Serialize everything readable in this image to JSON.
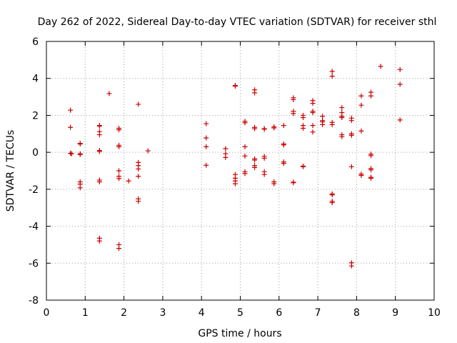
{
  "chart_data": {
    "type": "scatter",
    "title": "Day 262 of 2022, Sidereal Day-to-day VTEC variation (SDTVAR) for receiver sthl",
    "xlabel": "GPS time / hours",
    "ylabel": "SDTVAR / TECUs",
    "xlim": [
      0,
      10
    ],
    "ylim": [
      -8,
      6
    ],
    "xticks": [
      0,
      1,
      2,
      3,
      4,
      5,
      6,
      7,
      8,
      9,
      10
    ],
    "yticks": [
      -8,
      -6,
      -4,
      -2,
      0,
      2,
      4,
      6
    ],
    "grid": true,
    "marker": "+",
    "color": "#cc0000",
    "series": [
      {
        "name": "SDTVAR",
        "points": [
          [
            0.62,
            2.28
          ],
          [
            0.62,
            1.35
          ],
          [
            0.62,
            -0.05
          ],
          [
            0.65,
            -0.08
          ],
          [
            0.87,
            0.45
          ],
          [
            0.87,
            0.48
          ],
          [
            0.87,
            -0.08
          ],
          [
            0.87,
            -0.12
          ],
          [
            0.87,
            -1.6
          ],
          [
            0.87,
            -1.72
          ],
          [
            0.87,
            -1.92
          ],
          [
            1.37,
            1.45
          ],
          [
            1.37,
            1.42
          ],
          [
            1.37,
            1.12
          ],
          [
            1.37,
            0.95
          ],
          [
            1.37,
            0.1
          ],
          [
            1.37,
            0.05
          ],
          [
            1.37,
            -1.5
          ],
          [
            1.37,
            -1.6
          ],
          [
            1.37,
            -4.65
          ],
          [
            1.37,
            -4.8
          ],
          [
            1.62,
            3.18
          ],
          [
            1.87,
            1.3
          ],
          [
            1.87,
            1.22
          ],
          [
            1.87,
            0.38
          ],
          [
            1.87,
            0.3
          ],
          [
            1.87,
            -1.0
          ],
          [
            1.87,
            -1.3
          ],
          [
            1.87,
            -1.42
          ],
          [
            1.87,
            -5.0
          ],
          [
            1.87,
            -5.2
          ],
          [
            2.12,
            -1.55
          ],
          [
            2.37,
            2.6
          ],
          [
            2.37,
            -0.55
          ],
          [
            2.37,
            -0.72
          ],
          [
            2.37,
            -0.9
          ],
          [
            2.37,
            -1.3
          ],
          [
            2.37,
            -2.52
          ],
          [
            2.37,
            -2.65
          ],
          [
            2.62,
            0.08
          ],
          [
            4.12,
            1.55
          ],
          [
            4.12,
            0.78
          ],
          [
            4.12,
            0.3
          ],
          [
            4.12,
            -0.7
          ],
          [
            4.62,
            0.2
          ],
          [
            4.62,
            -0.08
          ],
          [
            4.62,
            -0.28
          ],
          [
            4.87,
            3.62
          ],
          [
            4.87,
            3.58
          ],
          [
            4.87,
            -1.2
          ],
          [
            4.87,
            -1.4
          ],
          [
            4.87,
            -1.55
          ],
          [
            4.87,
            -1.7
          ],
          [
            5.12,
            1.68
          ],
          [
            5.12,
            1.6
          ],
          [
            5.12,
            0.3
          ],
          [
            5.12,
            -0.2
          ],
          [
            5.12,
            -1.05
          ],
          [
            5.12,
            -1.15
          ],
          [
            5.37,
            3.38
          ],
          [
            5.37,
            3.22
          ],
          [
            5.37,
            1.35
          ],
          [
            5.37,
            1.28
          ],
          [
            5.37,
            -0.35
          ],
          [
            5.37,
            -0.42
          ],
          [
            5.37,
            -0.72
          ],
          [
            5.37,
            -0.82
          ],
          [
            5.62,
            1.28
          ],
          [
            5.62,
            1.25
          ],
          [
            5.62,
            -0.22
          ],
          [
            5.62,
            -0.32
          ],
          [
            5.62,
            -1.05
          ],
          [
            5.62,
            -1.2
          ],
          [
            5.87,
            1.38
          ],
          [
            5.87,
            1.32
          ],
          [
            5.87,
            -1.6
          ],
          [
            5.87,
            -1.7
          ],
          [
            6.12,
            1.45
          ],
          [
            6.12,
            0.45
          ],
          [
            6.12,
            0.4
          ],
          [
            6.12,
            -0.52
          ],
          [
            6.12,
            -0.6
          ],
          [
            6.37,
            2.95
          ],
          [
            6.37,
            2.85
          ],
          [
            6.37,
            2.22
          ],
          [
            6.37,
            2.1
          ],
          [
            6.37,
            -1.62
          ],
          [
            6.37,
            -1.65
          ],
          [
            6.62,
            2.0
          ],
          [
            6.62,
            1.88
          ],
          [
            6.62,
            1.45
          ],
          [
            6.62,
            1.3
          ],
          [
            6.62,
            -0.75
          ],
          [
            6.62,
            -0.78
          ],
          [
            6.87,
            2.8
          ],
          [
            6.87,
            2.65
          ],
          [
            6.87,
            2.22
          ],
          [
            6.87,
            2.15
          ],
          [
            6.87,
            1.45
          ],
          [
            6.87,
            1.1
          ],
          [
            7.12,
            1.95
          ],
          [
            7.12,
            1.72
          ],
          [
            7.12,
            1.65
          ],
          [
            7.12,
            1.5
          ],
          [
            7.37,
            4.38
          ],
          [
            7.37,
            4.12
          ],
          [
            7.37,
            1.62
          ],
          [
            7.37,
            1.5
          ],
          [
            7.37,
            -2.25
          ],
          [
            7.37,
            -2.3
          ],
          [
            7.37,
            -2.65
          ],
          [
            7.37,
            -2.72
          ],
          [
            7.62,
            2.42
          ],
          [
            7.62,
            2.15
          ],
          [
            7.62,
            1.95
          ],
          [
            7.62,
            1.88
          ],
          [
            7.62,
            0.95
          ],
          [
            7.62,
            0.85
          ],
          [
            7.87,
            1.85
          ],
          [
            7.87,
            1.72
          ],
          [
            7.87,
            1.0
          ],
          [
            7.87,
            0.92
          ],
          [
            7.87,
            -0.78
          ],
          [
            7.87,
            -5.98
          ],
          [
            7.87,
            -6.15
          ],
          [
            8.12,
            3.05
          ],
          [
            8.12,
            2.55
          ],
          [
            8.12,
            1.15
          ],
          [
            8.12,
            -1.18
          ],
          [
            8.12,
            -1.25
          ],
          [
            8.37,
            3.25
          ],
          [
            8.37,
            3.05
          ],
          [
            8.37,
            -0.1
          ],
          [
            8.37,
            -0.18
          ],
          [
            8.37,
            -0.88
          ],
          [
            8.37,
            -0.95
          ],
          [
            8.37,
            -1.35
          ],
          [
            8.37,
            -1.4
          ],
          [
            8.62,
            4.65
          ],
          [
            9.12,
            4.48
          ],
          [
            9.12,
            3.68
          ],
          [
            9.12,
            1.75
          ]
        ]
      }
    ]
  }
}
